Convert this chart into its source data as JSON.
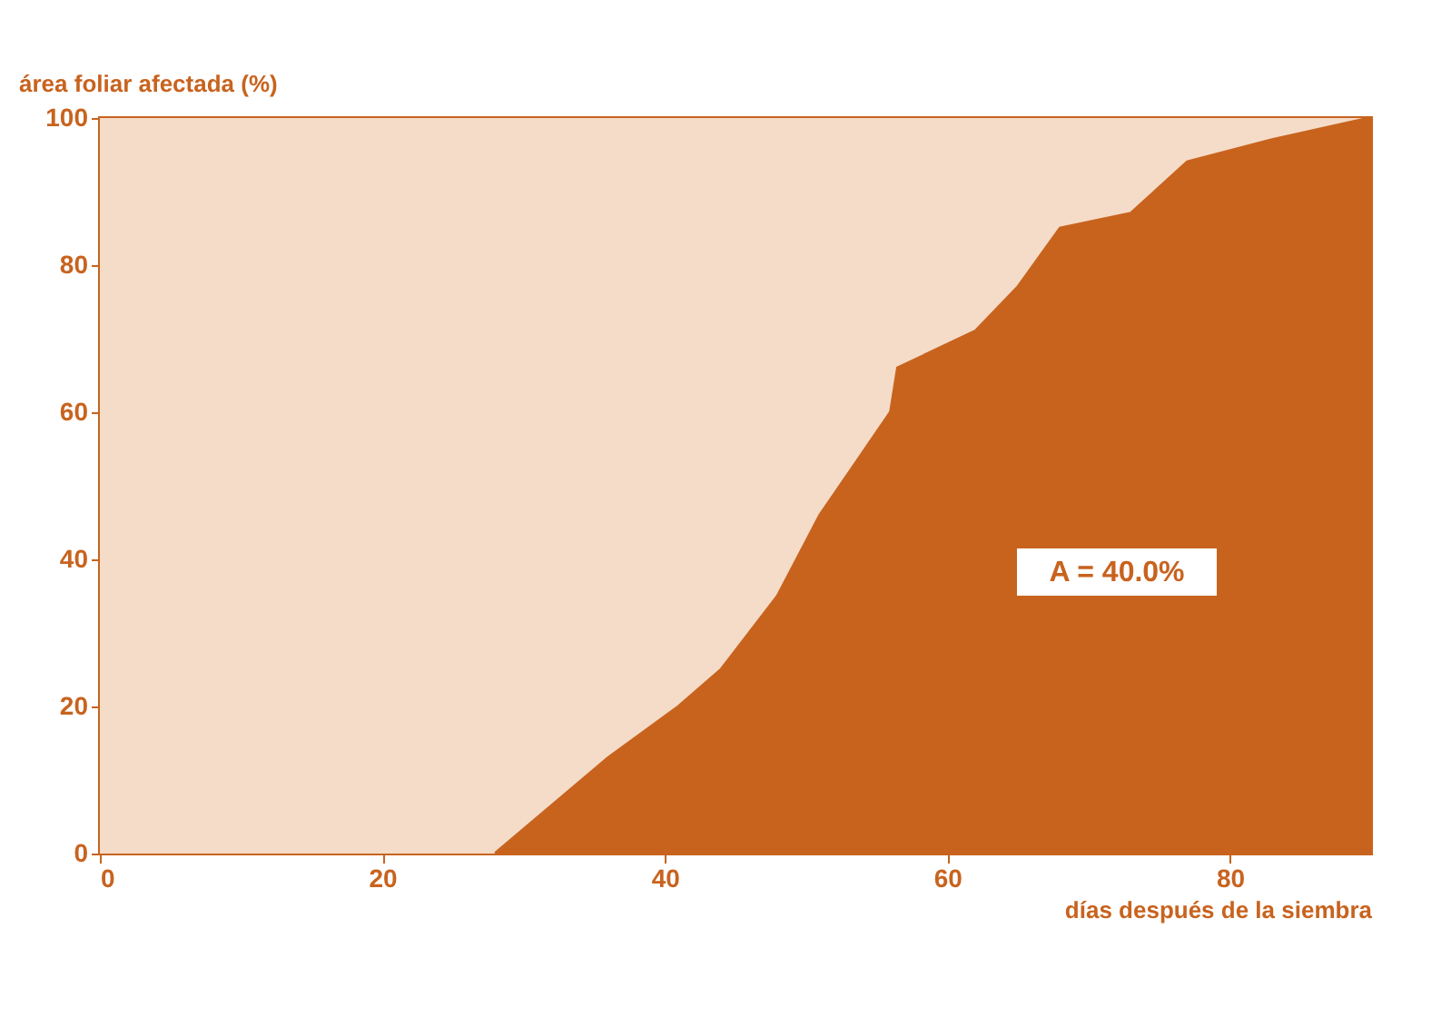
{
  "chart_data": {
    "type": "area",
    "xlabel": "días después de la siembra",
    "ylabel": "área foliar afectada (%)",
    "x": [
      28,
      36,
      41,
      44,
      48,
      51,
      56,
      56.5,
      62,
      65,
      68,
      73,
      77,
      83,
      90
    ],
    "series": [
      {
        "color": "#c8631e",
        "values": [
          0,
          13,
          20,
          25,
          35,
          46,
          60,
          66,
          71,
          77,
          85,
          87,
          94,
          97,
          100
        ]
      }
    ],
    "xlim": [
      0,
      90
    ],
    "ylim": [
      0,
      100
    ],
    "xticks": [
      0,
      20,
      40,
      60,
      80
    ],
    "yticks": [
      0,
      20,
      40,
      60,
      80,
      100
    ],
    "bands": [
      {
        "axis": "x",
        "from": 0,
        "to": 90,
        "color": "#f5dcc8"
      }
    ],
    "annotations": [
      "A = 40.0%"
    ],
    "grid": false
  }
}
